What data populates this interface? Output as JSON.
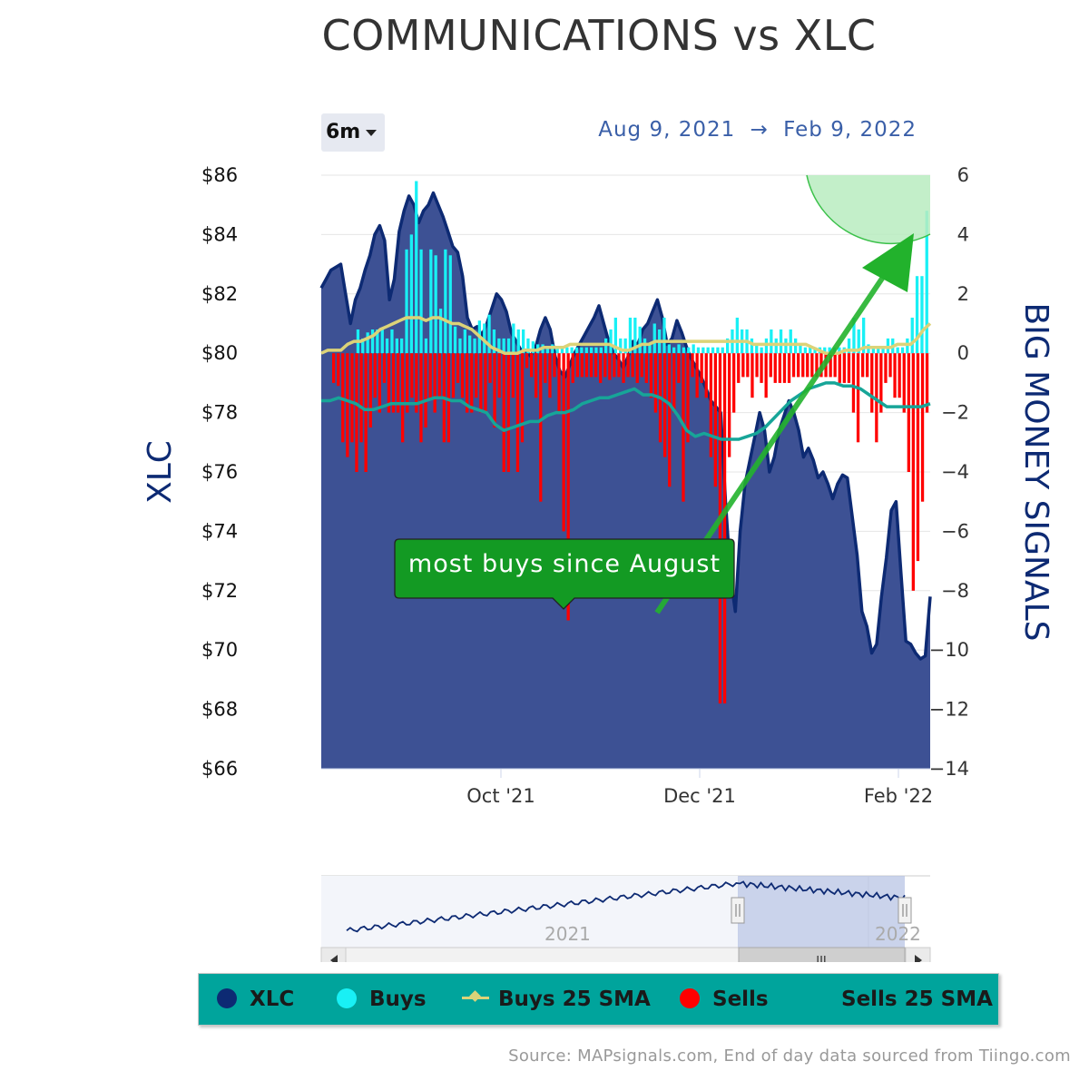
{
  "title": "COMMUNICATIONS vs XLC",
  "range_selector": {
    "label": "6m"
  },
  "date_range": {
    "from": "Aug 9, 2021",
    "arrow": "→",
    "to": "Feb 9, 2022"
  },
  "annotation": {
    "text": "most buys since August"
  },
  "navigator": {
    "labels": [
      "2021",
      "2022"
    ],
    "scroll_thumb": "III"
  },
  "legend": {
    "items": [
      {
        "label": "XLC",
        "color": "#0d2a73"
      },
      {
        "label": "Buys",
        "color": "#19f0f5"
      },
      {
        "label": "Buys 25 SMA",
        "color": "#dcd378"
      },
      {
        "label": "Sells",
        "color": "#ff0000"
      },
      {
        "label": "Sells 25 SMA",
        "color": "#17a598"
      }
    ]
  },
  "source": "Source: MAPsignals.com, End of day data sourced from Tiingo.com",
  "chart_data": {
    "type": "line",
    "y_left": {
      "title": "XLC",
      "ticks": [
        "$86",
        "$84",
        "$82",
        "$80",
        "$78",
        "$76",
        "$74",
        "$72",
        "$70",
        "$68",
        "$66"
      ],
      "min": 66,
      "max": 86
    },
    "y_right": {
      "title": "BIG MONEY SIGNALS",
      "ticks": [
        "6",
        "4",
        "2",
        "0",
        "−2",
        "−4",
        "−6",
        "−8",
        "−10",
        "−12",
        "−14"
      ],
      "min": -14,
      "max": 6
    },
    "x_ticks": [
      "Oct '21",
      "Dec '21",
      "Feb '22"
    ],
    "xlc_series": {
      "name": "XLC",
      "values": [
        82.2,
        82.5,
        82.8,
        82.9,
        83.0,
        82.0,
        81.0,
        81.8,
        82.2,
        82.8,
        83.3,
        84.0,
        84.3,
        83.8,
        81.8,
        82.5,
        84.1,
        84.8,
        85.3,
        85.0,
        84.4,
        84.8,
        85.0,
        85.4,
        85.0,
        84.6,
        84.1,
        83.6,
        83.4,
        82.6,
        81.2,
        80.8,
        80.9,
        80.6,
        81.0,
        81.5,
        82.0,
        81.8,
        81.4,
        80.7,
        80.4,
        80.1,
        80.1,
        79.9,
        80.2,
        80.8,
        81.2,
        80.8,
        79.9,
        79.4,
        79.2,
        79.6,
        80.0,
        80.3,
        80.6,
        80.9,
        81.2,
        81.6,
        81.0,
        80.4,
        80.0,
        79.8,
        79.5,
        79.9,
        80.4,
        80.3,
        80.8,
        81.0,
        81.4,
        81.8,
        81.2,
        80.3,
        80.5,
        81.1,
        80.7,
        80.2,
        79.8,
        79.5,
        79.2,
        78.8,
        78.4,
        78.2,
        78.0,
        75.0,
        72.5,
        71.3,
        74.0,
        75.6,
        76.4,
        77.2,
        78.0,
        77.4,
        76.0,
        76.5,
        77.4,
        77.9,
        78.4,
        78.0,
        77.4,
        76.5,
        76.8,
        76.4,
        75.8,
        76.0,
        75.6,
        75.1,
        75.6,
        75.9,
        75.8,
        74.5,
        73.2,
        71.3,
        70.8,
        69.9,
        70.2,
        71.8,
        73.1,
        74.7,
        75.0,
        72.6,
        70.3,
        70.2,
        69.9,
        69.7,
        69.8,
        71.8
      ],
      "x_labels": [
        "Aug '21",
        "Feb '22"
      ]
    },
    "buys": {
      "name": "Buys",
      "values": [
        0,
        0,
        0,
        0,
        0,
        0.8,
        0.5,
        0.7,
        0.8,
        0.8,
        0.8,
        0.5,
        0.8,
        0.5,
        0.5,
        3.5,
        4.0,
        5.8,
        3.5,
        0.5,
        3.5,
        3.3,
        1.5,
        3.5,
        3.3,
        0.9,
        0.5,
        0.8,
        0.6,
        0.5,
        1.1,
        1.0,
        1.3,
        0.8,
        0.5,
        0.5,
        0.5,
        1.0,
        0.8,
        0.8,
        0.5,
        0.4,
        0.3,
        0.3,
        0.2,
        0.3,
        0.2,
        0.2,
        0.2,
        0.2,
        0.2,
        0.2,
        0.2,
        0.2,
        0.2,
        0.2,
        0.5,
        0.8,
        1.2,
        0.5,
        0.5,
        1.2,
        1.2,
        0.9,
        0.5,
        0.3,
        1.0,
        0.8,
        1.2,
        0.3,
        0.2,
        0.3,
        0.2,
        0.2,
        0.3,
        0.2,
        0.2,
        0.2,
        0.2,
        0.2,
        0.2,
        0.5,
        0.8,
        1.2,
        0.8,
        0.8,
        0.5,
        0.3,
        0.2,
        0.5,
        0.8,
        0.5,
        0.8,
        0.5,
        0.8,
        0.5,
        0.3,
        0.2,
        0.2,
        0.2,
        0.2,
        0.2,
        0.2,
        0.2,
        0.2,
        0.2,
        0.5,
        1.2,
        0.8,
        1.2,
        0.3,
        0.2,
        0.2,
        0.2,
        0.5,
        0.5,
        0.2,
        0.2,
        0.5,
        1.2,
        2.6,
        2.6,
        4.8
      ]
    },
    "sells": {
      "name": "Sells",
      "values": [
        -1.0,
        -1.1,
        -3.0,
        -3.5,
        -3.0,
        -4.0,
        -3.0,
        -4.0,
        -2.5,
        -1.5,
        -2.0,
        -1.0,
        -2.0,
        -2.0,
        -2.0,
        -3.0,
        -2.0,
        -1.5,
        -2.0,
        -3.0,
        -2.5,
        -1.5,
        -2.0,
        -1.5,
        -3.0,
        -3.0,
        -1.5,
        -1.0,
        -1.5,
        -2.0,
        -2.0,
        -1.5,
        -2.0,
        -2.0,
        -1.0,
        -2.5,
        -1.5,
        -4.0,
        -4.0,
        -1.5,
        -4.0,
        -3.0,
        -0.5,
        -0.8,
        -1.5,
        -5.0,
        -1.0,
        -1.5,
        -0.8,
        -2.0,
        -6.0,
        -9.0,
        -1.0,
        -0.8,
        -0.8,
        -0.8,
        -0.8,
        -0.8,
        -1.0,
        -0.8,
        -0.9,
        -0.8,
        -0.8,
        -1.0,
        -0.8,
        -0.8,
        -1.0,
        -0.8,
        -1.0,
        -1.5,
        -2.0,
        -3.0,
        -3.5,
        -4.5,
        -2.0,
        -1.0,
        -5.0,
        -3.0,
        -0.8,
        -1.5,
        -1.0,
        -1.5,
        -3.5,
        -4.5,
        -11.8,
        -11.8,
        -3.5,
        -2.0,
        -1.0,
        -0.8,
        -0.8,
        -1.5,
        -0.8,
        -1.0,
        -1.5,
        -0.8,
        -1.0,
        -1.0,
        -1.0,
        -1.0,
        -0.8,
        -0.8,
        -0.8,
        -0.8,
        -0.8,
        -0.8,
        -0.8,
        -0.8,
        -0.8,
        -0.8,
        -1.0,
        -1.0,
        -1.0,
        -2.0,
        -3.0,
        -0.8,
        -0.8,
        -2.0,
        -3.0,
        -2.0,
        -1.0,
        -0.8,
        -1.5,
        -1.5,
        -2.0,
        -4.0,
        -8.0,
        -7.0,
        -5.0,
        -2.0
      ]
    },
    "buys_sma": {
      "name": "Buys 25 SMA",
      "values": [
        0.0,
        0.1,
        0.1,
        0.1,
        0.3,
        0.4,
        0.4,
        0.5,
        0.6,
        0.8,
        0.9,
        1.0,
        1.1,
        1.2,
        1.2,
        1.2,
        1.1,
        1.2,
        1.2,
        1.1,
        1.0,
        1.0,
        0.9,
        0.8,
        0.6,
        0.4,
        0.2,
        0.1,
        0.0,
        0.0,
        0.0,
        0.1,
        0.1,
        0.1,
        0.2,
        0.2,
        0.2,
        0.2,
        0.3,
        0.3,
        0.3,
        0.3,
        0.3,
        0.3,
        0.3,
        0.2,
        0.1,
        0.1,
        0.2,
        0.3,
        0.3,
        0.4,
        0.4,
        0.4,
        0.4,
        0.4,
        0.4,
        0.4,
        0.4,
        0.4,
        0.4,
        0.4,
        0.4,
        0.4,
        0.4,
        0.4,
        0.3,
        0.3,
        0.3,
        0.3,
        0.3,
        0.3,
        0.3,
        0.3,
        0.3,
        0.2,
        0.1,
        0.0,
        0.0,
        0.0,
        0.1,
        0.1,
        0.1,
        0.2,
        0.2,
        0.2,
        0.2,
        0.2,
        0.3,
        0.3,
        0.3,
        0.5,
        0.8,
        1.0
      ]
    },
    "sells_sma": {
      "name": "Sells 25 SMA",
      "values": [
        -1.6,
        -1.6,
        -1.5,
        -1.6,
        -1.7,
        -1.9,
        -1.9,
        -1.8,
        -1.7,
        -1.7,
        -1.7,
        -1.7,
        -1.6,
        -1.5,
        -1.5,
        -1.6,
        -1.6,
        -1.8,
        -1.9,
        -2.0,
        -2.4,
        -2.6,
        -2.5,
        -2.4,
        -2.3,
        -2.3,
        -2.1,
        -2.0,
        -2.0,
        -1.9,
        -1.7,
        -1.6,
        -1.5,
        -1.5,
        -1.4,
        -1.3,
        -1.2,
        -1.4,
        -1.4,
        -1.5,
        -1.7,
        -2.1,
        -2.6,
        -2.8,
        -2.7,
        -2.8,
        -2.9,
        -2.9,
        -2.9,
        -2.8,
        -2.7,
        -2.5,
        -2.2,
        -1.9,
        -1.6,
        -1.4,
        -1.2,
        -1.1,
        -1.0,
        -1.0,
        -1.1,
        -1.1,
        -1.2,
        -1.4,
        -1.6,
        -1.8,
        -1.8,
        -1.8,
        -1.8,
        -1.8,
        -1.7
      ]
    },
    "annotations": [
      "most buys since August"
    ]
  }
}
